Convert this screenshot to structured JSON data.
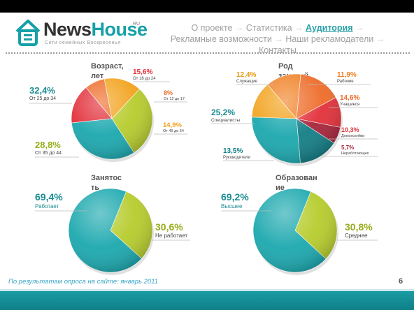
{
  "header": {
    "logo": {
      "news": "News",
      "house": "House",
      "ru": "RU",
      "tagline": "Сети семейных Воскресенья"
    },
    "nav": {
      "items": [
        "О проекте",
        "Статистика",
        "Аудитория",
        "Рекламные возможности",
        "Наши рекламодатели",
        "Контакты"
      ],
      "active": "Аудитория"
    }
  },
  "colors": {
    "teal": "#1ba8ae",
    "green": "#b6cc2c",
    "orange": "#f2a21c",
    "orangeRed": "#ee6b29",
    "red": "#e2303a",
    "darkTeal": "#137e86"
  },
  "chart_data": [
    {
      "type": "pie",
      "title": "Возраст, лет",
      "slices": [
        {
          "pct": "15,6%",
          "label": "От 18 до 24",
          "value": 15.6,
          "color": "#e2303a"
        },
        {
          "pct": "8%",
          "label": "От 12 до 17",
          "value": 8.0,
          "color": "#ee6b29"
        },
        {
          "pct": "14,9%",
          "label": "От 45 до 54",
          "value": 14.9,
          "color": "#f2a21c"
        },
        {
          "pct": "28,8%",
          "label": "От 35 до 44",
          "value": 28.8,
          "color": "#b6cc2c"
        },
        {
          "pct": "32,4%",
          "label": "От 25 до 34",
          "value": 32.4,
          "color": "#1ba8ae"
        }
      ]
    },
    {
      "type": "pie",
      "title": "Род занятий",
      "slices": [
        {
          "pct": "12,4%",
          "label": "Служащие",
          "value": 12.4,
          "color": "#f2a21c"
        },
        {
          "pct": "11,9%",
          "label": "Рабочие",
          "value": 11.9,
          "color": "#f07f22"
        },
        {
          "pct": "14,6%",
          "label": "Учащиеся",
          "value": 14.6,
          "color": "#ee6b29"
        },
        {
          "pct": "10,3%",
          "label": "Домохозяйки",
          "value": 10.3,
          "color": "#e2303a"
        },
        {
          "pct": "5,7%",
          "label": "Неработающие",
          "value": 5.7,
          "color": "#a8243a"
        },
        {
          "pct": "13,5%",
          "label": "Руководители",
          "value": 13.5,
          "color": "#137e86"
        },
        {
          "pct": "25,2%",
          "label": "Специалисты",
          "value": 25.2,
          "color": "#1ba8ae"
        }
      ]
    },
    {
      "type": "pie",
      "title": "Занятость",
      "slices": [
        {
          "pct": "30,6%",
          "label": "Не работает",
          "value": 30.6,
          "color": "#b6cc2c"
        },
        {
          "pct": "69,4%",
          "label": "Работает",
          "value": 69.4,
          "color": "#1ba8ae"
        }
      ]
    },
    {
      "type": "pie",
      "title": "Образование",
      "slices": [
        {
          "pct": "30,8%",
          "label": "Среднее",
          "value": 30.8,
          "color": "#b6cc2c"
        },
        {
          "pct": "69,2%",
          "label": "Высшее",
          "value": 69.2,
          "color": "#1ba8ae"
        }
      ]
    }
  ],
  "footer": {
    "note": "По результатам опроса на сайте: январь 2011",
    "page": "6"
  }
}
